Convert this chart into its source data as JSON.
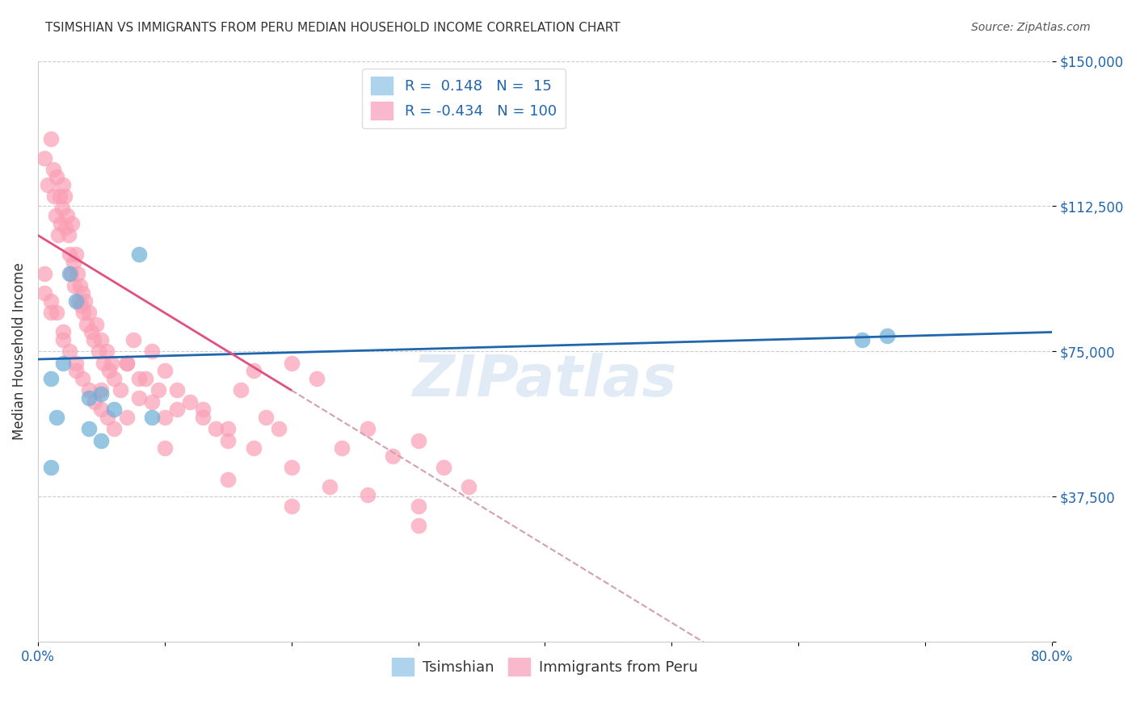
{
  "title": "TSIMSHIAN VS IMMIGRANTS FROM PERU MEDIAN HOUSEHOLD INCOME CORRELATION CHART",
  "source": "Source: ZipAtlas.com",
  "ylabel": "Median Household Income",
  "xlabel": "",
  "watermark": "ZIPatlas",
  "xlim": [
    0,
    0.8
  ],
  "ylim": [
    0,
    150000
  ],
  "yticks": [
    0,
    37500,
    75000,
    112500,
    150000
  ],
  "ytick_labels": [
    "",
    "$37,500",
    "$75,000",
    "$112,500",
    "$150,000"
  ],
  "xticks": [
    0.0,
    0.1,
    0.2,
    0.3,
    0.4,
    0.5,
    0.6,
    0.7,
    0.8
  ],
  "xtick_labels": [
    "0.0%",
    "",
    "",
    "",
    "",
    "",
    "",
    "",
    "80.0%"
  ],
  "blue_R": 0.148,
  "blue_N": 15,
  "pink_R": -0.434,
  "pink_N": 100,
  "blue_color": "#6baed6",
  "pink_color": "#fa9fb5",
  "blue_line_color": "#2166ac",
  "pink_line_color": "#e05080",
  "pink_dash_color": "#d4a0b0",
  "axis_color": "#2166ac",
  "grid_color": "#cccccc",
  "title_color": "#333333",
  "background_color": "#ffffff",
  "tsimshian_points_x": [
    0.01,
    0.01,
    0.015,
    0.02,
    0.025,
    0.03,
    0.04,
    0.04,
    0.05,
    0.05,
    0.06,
    0.08,
    0.09,
    0.65,
    0.67
  ],
  "tsimshian_points_y": [
    45000,
    68000,
    58000,
    72000,
    95000,
    88000,
    63000,
    55000,
    52000,
    64000,
    60000,
    100000,
    58000,
    78000,
    79000
  ],
  "peru_points_x": [
    0.005,
    0.008,
    0.01,
    0.012,
    0.013,
    0.014,
    0.015,
    0.016,
    0.017,
    0.018,
    0.019,
    0.02,
    0.021,
    0.022,
    0.023,
    0.024,
    0.025,
    0.026,
    0.027,
    0.028,
    0.029,
    0.03,
    0.031,
    0.032,
    0.033,
    0.034,
    0.035,
    0.036,
    0.037,
    0.038,
    0.04,
    0.042,
    0.044,
    0.046,
    0.048,
    0.05,
    0.052,
    0.054,
    0.056,
    0.058,
    0.06,
    0.065,
    0.07,
    0.075,
    0.08,
    0.085,
    0.09,
    0.095,
    0.1,
    0.11,
    0.12,
    0.13,
    0.14,
    0.15,
    0.16,
    0.17,
    0.18,
    0.19,
    0.2,
    0.22,
    0.24,
    0.26,
    0.28,
    0.3,
    0.32,
    0.34,
    0.005,
    0.01,
    0.015,
    0.02,
    0.025,
    0.03,
    0.035,
    0.04,
    0.045,
    0.05,
    0.055,
    0.06,
    0.07,
    0.08,
    0.09,
    0.1,
    0.11,
    0.13,
    0.15,
    0.17,
    0.2,
    0.23,
    0.26,
    0.3,
    0.005,
    0.01,
    0.02,
    0.03,
    0.05,
    0.07,
    0.1,
    0.15,
    0.2,
    0.3
  ],
  "peru_points_y": [
    125000,
    118000,
    130000,
    122000,
    115000,
    110000,
    120000,
    105000,
    115000,
    108000,
    112000,
    118000,
    115000,
    107000,
    110000,
    105000,
    100000,
    95000,
    108000,
    98000,
    92000,
    100000,
    95000,
    88000,
    92000,
    87000,
    90000,
    85000,
    88000,
    82000,
    85000,
    80000,
    78000,
    82000,
    75000,
    78000,
    72000,
    75000,
    70000,
    72000,
    68000,
    65000,
    72000,
    78000,
    63000,
    68000,
    62000,
    65000,
    58000,
    60000,
    62000,
    58000,
    55000,
    52000,
    65000,
    70000,
    58000,
    55000,
    72000,
    68000,
    50000,
    55000,
    48000,
    52000,
    45000,
    40000,
    90000,
    88000,
    85000,
    80000,
    75000,
    70000,
    68000,
    65000,
    62000,
    60000,
    58000,
    55000,
    72000,
    68000,
    75000,
    70000,
    65000,
    60000,
    55000,
    50000,
    45000,
    40000,
    38000,
    35000,
    95000,
    85000,
    78000,
    72000,
    65000,
    58000,
    50000,
    42000,
    35000,
    30000
  ]
}
